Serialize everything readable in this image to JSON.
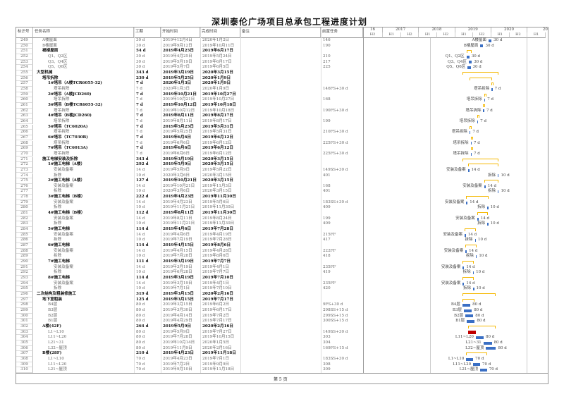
{
  "title": "深圳泰伦广场项目总承包工程进度计划",
  "footer": "第 5 页",
  "columns": {
    "id": "标识号",
    "name": "任务名称",
    "duration": "工期",
    "start": "开始时间",
    "finish": "完成时间",
    "note": "备注",
    "pred": "前置任务"
  },
  "timescale": {
    "years": [
      "16",
      "2017",
      "2018",
      "2019",
      "2020",
      "20"
    ],
    "halves": [
      "H2",
      "H1",
      "H2",
      "H1",
      "H2",
      "H1",
      "H2",
      "H1",
      "H2",
      "H1"
    ]
  },
  "colors": {
    "bar": "#3a6fc4",
    "summary": "#f5b800",
    "critical": "#c00000"
  },
  "rows": [
    {
      "id": "249",
      "name": "A楼屋面",
      "duration": "30 d",
      "start": "2019年12月4日",
      "finish": "2020年1月2日",
      "pred": "146",
      "level": 1
    },
    {
      "id": "250",
      "name": "B楼屋面",
      "duration": "30 d",
      "start": "2019年9月12日",
      "finish": "2019年10月11日",
      "pred": "190",
      "level": 1
    },
    {
      "id": "251",
      "name": "裙楼屋面",
      "duration": "54 d",
      "start": "2019年4月25日",
      "finish": "2019年6月17日",
      "pred": "",
      "level": 1,
      "summary": true
    },
    {
      "id": "252",
      "name": "Q1、Q2区",
      "duration": "30 d",
      "start": "2019年4月25日",
      "finish": "2019年5月24日",
      "pred": "210",
      "level": 2
    },
    {
      "id": "253",
      "name": "Q3、Q4区",
      "duration": "30 d",
      "start": "2019年5月19日",
      "finish": "2019年6月17日",
      "pred": "217",
      "level": 2
    },
    {
      "id": "254",
      "name": "Q5、Q6区",
      "duration": "30 d",
      "start": "2019年5月7日",
      "finish": "2019年6月5日",
      "pred": "225",
      "level": 2
    },
    {
      "id": "255",
      "name": "大型机械",
      "duration": "343 d",
      "start": "2019年3月19日",
      "finish": "2020年3月15日",
      "pred": "",
      "level": 0,
      "summary": true
    },
    {
      "id": "256",
      "name": "塔吊拆除",
      "duration": "230 d",
      "start": "2019年5月25日",
      "finish": "2020年1月9日",
      "pred": "",
      "level": 1,
      "summary": true
    },
    {
      "id": "257",
      "name": "1#塔吊（A楼TCR6055-32)",
      "duration": "7 d",
      "start": "2020年1月3日",
      "finish": "2020年1月9日",
      "pred": "",
      "level": 2,
      "summary": true
    },
    {
      "id": "258",
      "name": "塔吊拆除",
      "duration": "7 d",
      "start": "2020年1月3日",
      "finish": "2020年1月9日",
      "pred": "146FS+30 d",
      "level": 3
    },
    {
      "id": "259",
      "name": "2#塔吊（A楼JCD260)",
      "duration": "7 d",
      "start": "2019年10月21日",
      "finish": "2019年10月27日",
      "pred": "",
      "level": 2,
      "summary": true
    },
    {
      "id": "260",
      "name": "塔吊拆除",
      "duration": "7 d",
      "start": "2019年10月21日",
      "finish": "2019年10月27日",
      "pred": "168",
      "level": 3
    },
    {
      "id": "261",
      "name": "3#塔吊（B楼TCR6055-32)",
      "duration": "7 d",
      "start": "2019年10月12日",
      "finish": "2019年10月18日",
      "pred": "",
      "level": 2,
      "summary": true
    },
    {
      "id": "262",
      "name": "塔吊拆除",
      "duration": "7 d",
      "start": "2019年10月12日",
      "finish": "2019年10月18日",
      "pred": "190FS+30 d",
      "level": 3
    },
    {
      "id": "263",
      "name": "4#塔吊（B楼JCD260)",
      "duration": "7 d",
      "start": "2019年8月11日",
      "finish": "2019年8月17日",
      "pred": "",
      "level": 2,
      "summary": true
    },
    {
      "id": "264",
      "name": "塔吊拆除",
      "duration": "7 d",
      "start": "2019年8月11日",
      "finish": "2019年8月17日",
      "pred": "199",
      "level": 3
    },
    {
      "id": "265",
      "name": "5#塔吊（TC6020A)",
      "duration": "7 d",
      "start": "2019年5月25日",
      "finish": "2019年5月31日",
      "pred": "",
      "level": 2,
      "summary": true
    },
    {
      "id": "266",
      "name": "塔吊拆除",
      "duration": "7 d",
      "start": "2019年5月25日",
      "finish": "2019年5月31日",
      "pred": "210FS+30 d",
      "level": 3
    },
    {
      "id": "267",
      "name": "6#塔吊（TC7030B)",
      "duration": "7 d",
      "start": "2019年6月6日",
      "finish": "2019年6月12日",
      "pred": "",
      "level": 2,
      "summary": true
    },
    {
      "id": "268",
      "name": "塔吊拆除",
      "duration": "7 d",
      "start": "2019年6月6日",
      "finish": "2019年6月12日",
      "pred": "225FS+30 d",
      "level": 3
    },
    {
      "id": "269",
      "name": "7#塔吊（TC6013A)",
      "duration": "7 d",
      "start": "2019年6月6日",
      "finish": "2019年6月12日",
      "pred": "",
      "level": 2,
      "summary": true
    },
    {
      "id": "270",
      "name": "塔吊拆除",
      "duration": "7 d",
      "start": "2019年6月6日",
      "finish": "2019年6月12日",
      "pred": "225FS+30 d",
      "level": 3
    },
    {
      "id": "271",
      "name": "施工电梯安装及拆除",
      "duration": "343 d",
      "start": "2019年3月19日",
      "finish": "2020年3月15日",
      "pred": "",
      "level": 1,
      "summary": true
    },
    {
      "id": "272",
      "name": "1#施工电梯（A楼）",
      "duration": "292 d",
      "start": "2019年5月9日",
      "finish": "2020年3月15日",
      "pred": "",
      "level": 2,
      "summary": true
    },
    {
      "id": "273",
      "name": "安装及备案",
      "duration": "14 d",
      "start": "2019年5月9日",
      "finish": "2019年5月22日",
      "pred": "149SS+30 d",
      "level": 3
    },
    {
      "id": "274",
      "name": "拆除",
      "duration": "10 d",
      "start": "2020年3月6日",
      "finish": "2020年3月15日",
      "pred": "401",
      "level": 3
    },
    {
      "id": "275",
      "name": "2#施工电梯（A楼）",
      "duration": "127 d",
      "start": "2019年10月21日",
      "finish": "2020年3月15日",
      "pred": "",
      "level": 2,
      "summary": true
    },
    {
      "id": "276",
      "name": "安装及备案",
      "duration": "14 d",
      "start": "2019年10月21日",
      "finish": "2019年11月3日",
      "pred": "168",
      "level": 3
    },
    {
      "id": "277",
      "name": "拆除",
      "duration": "10 d",
      "start": "2020年3月6日",
      "finish": "2020年3月15日",
      "pred": "401",
      "level": 3
    },
    {
      "id": "278",
      "name": "3#施工电梯（B楼）",
      "duration": "222 d",
      "start": "2019年4月23日",
      "finish": "2019年11月30日",
      "pred": "",
      "level": 2,
      "summary": true
    },
    {
      "id": "279",
      "name": "安装及备案",
      "duration": "14 d",
      "start": "2019年4月23日",
      "finish": "2019年5月6日",
      "pred": "183SS+30 d",
      "level": 3
    },
    {
      "id": "280",
      "name": "拆除",
      "duration": "10 d",
      "start": "2019年11月21日",
      "finish": "2019年11月30日",
      "pred": "409",
      "level": 3
    },
    {
      "id": "281",
      "name": "4#施工电梯（B楼）",
      "duration": "112 d",
      "start": "2019年8月11日",
      "finish": "2019年11月30日",
      "pred": "",
      "level": 2,
      "summary": true
    },
    {
      "id": "282",
      "name": "安装及备案",
      "duration": "14 d",
      "start": "2019年8月11日",
      "finish": "2019年8月24日",
      "pred": "199",
      "level": 3
    },
    {
      "id": "283",
      "name": "拆除",
      "duration": "10 d",
      "start": "2019年11月21日",
      "finish": "2019年11月30日",
      "pred": "409",
      "level": 3
    },
    {
      "id": "284",
      "name": "5#施工电梯",
      "duration": "114 d",
      "start": "2019年4月6日",
      "finish": "2019年7月28日",
      "pred": "",
      "level": 2,
      "summary": true
    },
    {
      "id": "285",
      "name": "安装及备案",
      "duration": "14 d",
      "start": "2019年4月6日",
      "finish": "2019年4月19日",
      "pred": "215FF",
      "level": 3
    },
    {
      "id": "286",
      "name": "拆除",
      "duration": "10 d",
      "start": "2019年7月19日",
      "finish": "2019年7月28日",
      "pred": "417",
      "level": 3
    },
    {
      "id": "287",
      "name": "6#施工电梯",
      "duration": "114 d",
      "start": "2019年4月15日",
      "finish": "2019年8月6日",
      "pred": "",
      "level": 2,
      "summary": true
    },
    {
      "id": "288",
      "name": "安装及备案",
      "duration": "14 d",
      "start": "2019年4月15日",
      "finish": "2019年4月28日",
      "pred": "222FF",
      "level": 3
    },
    {
      "id": "289",
      "name": "拆除",
      "duration": "10 d",
      "start": "2019年7月28日",
      "finish": "2019年8月6日",
      "pred": "418",
      "level": 3
    },
    {
      "id": "290",
      "name": "7#施工电梯",
      "duration": "111 d",
      "start": "2019年3月19日",
      "finish": "2019年7月7日",
      "pred": "",
      "level": 2,
      "summary": true
    },
    {
      "id": "291",
      "name": "安装及备案",
      "duration": "14 d",
      "start": "2019年3月19日",
      "finish": "2019年4月1日",
      "pred": "235FF",
      "level": 3
    },
    {
      "id": "292",
      "name": "拆除",
      "duration": "10 d",
      "start": "2019年6月28日",
      "finish": "2019年7月7日",
      "pred": "419",
      "level": 3
    },
    {
      "id": "293",
      "name": "8#施工电梯",
      "duration": "114 d",
      "start": "2019年3月19日",
      "finish": "2019年7月10日",
      "pred": "",
      "level": 2,
      "summary": true
    },
    {
      "id": "294",
      "name": "安装及备案",
      "duration": "14 d",
      "start": "2019年3月19日",
      "finish": "2019年4月1日",
      "pred": "235FF",
      "level": 3
    },
    {
      "id": "295",
      "name": "拆除",
      "duration": "10 d",
      "start": "2019年7月1日",
      "finish": "2019年7月10日",
      "pred": "420",
      "level": 3
    },
    {
      "id": "296",
      "name": "二次结构及粗装修施工",
      "duration": "319 d",
      "start": "2019年3月15日",
      "finish": "2020年2月16日",
      "pred": "",
      "level": 0,
      "summary": true
    },
    {
      "id": "297",
      "name": "地下室粗装",
      "duration": "125 d",
      "start": "2019年3月15日",
      "finish": "2019年7月17日",
      "pred": "",
      "level": 1,
      "summary": true
    },
    {
      "id": "298",
      "name": "B4层",
      "duration": "80 d",
      "start": "2019年3月15日",
      "finish": "2019年6月2日",
      "pred": "9FS+30 d",
      "level": 2
    },
    {
      "id": "299",
      "name": "B3层",
      "duration": "80 d",
      "start": "2019年3月30日",
      "finish": "2019年6月17日",
      "pred": "298SS+15 d",
      "level": 2
    },
    {
      "id": "300",
      "name": "B2层",
      "duration": "80 d",
      "start": "2019年4月14日",
      "finish": "2019年7月2日",
      "pred": "299SS+15 d",
      "level": 2
    },
    {
      "id": "301",
      "name": "B1层",
      "duration": "80 d",
      "start": "2019年4月29日",
      "finish": "2019年7月17日",
      "pred": "300SS+15 d",
      "level": 2
    },
    {
      "id": "302",
      "name": "A楼(42F)",
      "duration": "264 d",
      "start": "2019年5月9日",
      "finish": "2020年2月16日",
      "pred": "",
      "level": 1,
      "summary": true
    },
    {
      "id": "303",
      "name": "L1~L10",
      "duration": "80 d",
      "start": "2019年5月9日",
      "finish": "2019年7月27日",
      "pred": "149SS+30 d",
      "level": 2,
      "critical": true
    },
    {
      "id": "304",
      "name": "L11~L20",
      "duration": "80 d",
      "start": "2019年7月28日",
      "finish": "2019年10月15日",
      "pred": "303",
      "level": 2
    },
    {
      "id": "305",
      "name": "L21~31",
      "duration": "80 d",
      "start": "2019年10月14日",
      "finish": "2020年1月5日",
      "pred": "304",
      "level": 2
    },
    {
      "id": "306",
      "name": "L32~屋顶",
      "duration": "80 d",
      "start": "2019年11月9日",
      "finish": "2020年2月16日",
      "pred": "169FS+15 d",
      "level": 2
    },
    {
      "id": "307",
      "name": "B楼(28F)",
      "duration": "210 d",
      "start": "2019年4月23日",
      "finish": "2019年11月18日",
      "pred": "",
      "level": 1,
      "summary": true
    },
    {
      "id": "308",
      "name": "L1~L10",
      "duration": "70 d",
      "start": "2019年4月23日",
      "finish": "2019年7月1日",
      "pred": "183SS+30 d",
      "level": 2
    },
    {
      "id": "309",
      "name": "L11~L20",
      "duration": "70 d",
      "start": "2019年7月2日",
      "finish": "2019年9月9日",
      "pred": "308",
      "level": 2
    },
    {
      "id": "310",
      "name": "L21~屋顶",
      "duration": "70 d",
      "start": "2019年9月10日",
      "finish": "2019年11月18日",
      "pred": "309",
      "level": 2
    }
  ]
}
